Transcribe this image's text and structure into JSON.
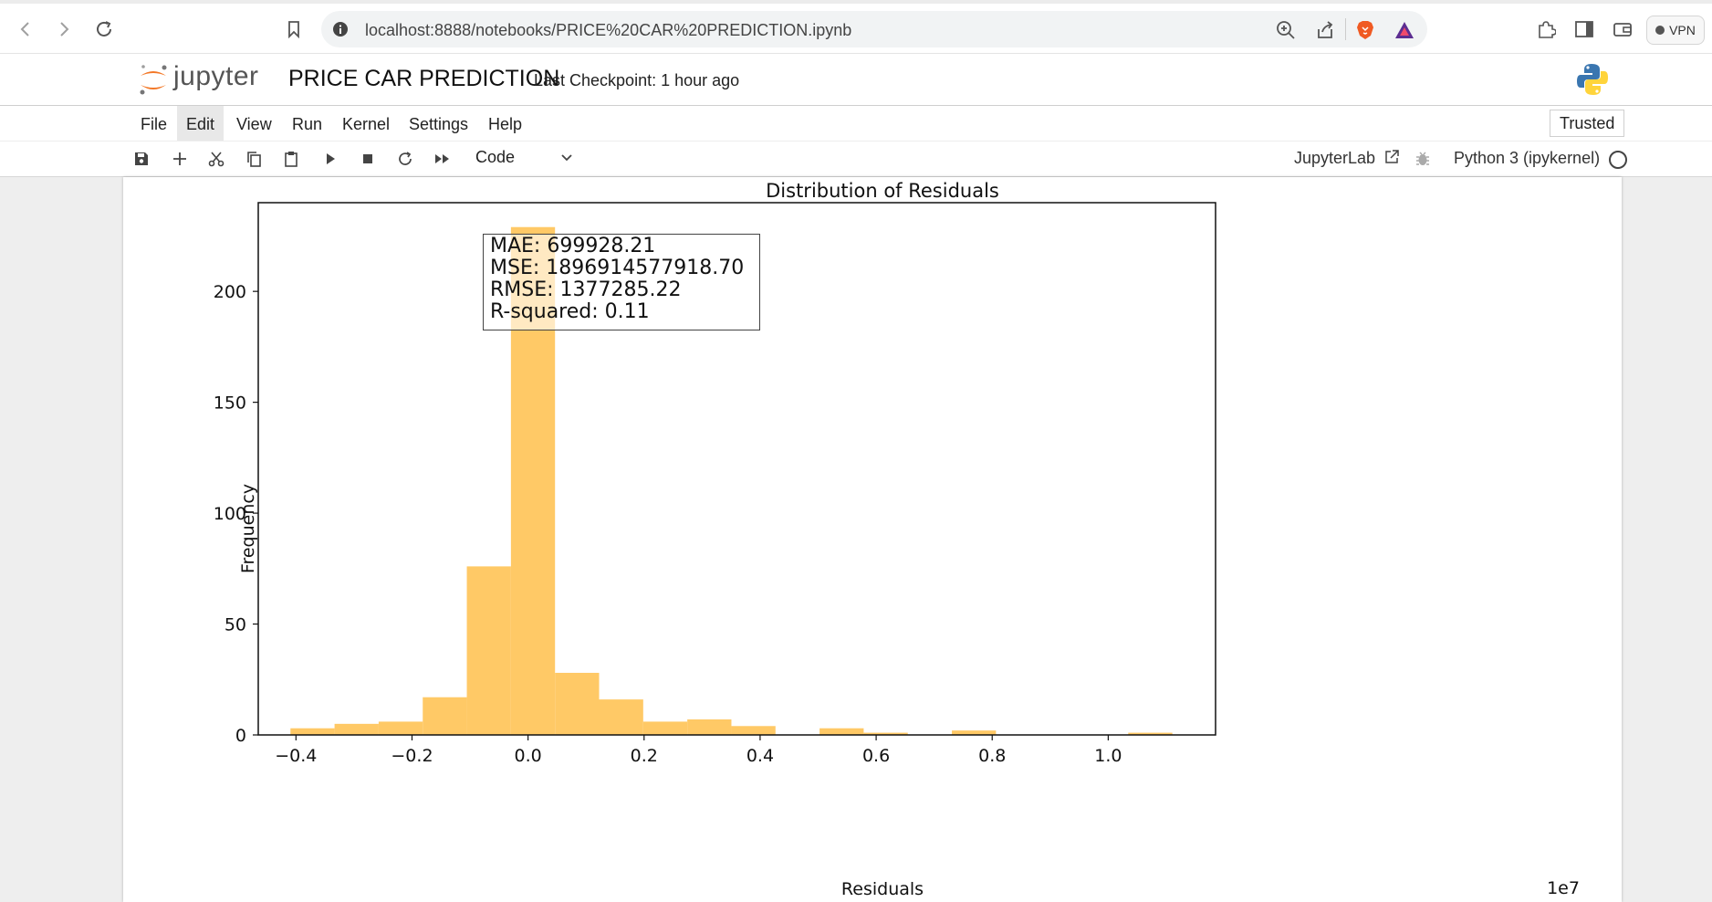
{
  "browser": {
    "url": "localhost:8888/notebooks/PRICE%20CAR%20PREDICTION.ipynb",
    "vpn_label": "VPN"
  },
  "header": {
    "brand": "jupyter",
    "notebook_title": "PRICE CAR PREDICTION",
    "checkpoint": "Last Checkpoint: 1 hour ago"
  },
  "menu": {
    "items": [
      "File",
      "Edit",
      "View",
      "Run",
      "Kernel",
      "Settings",
      "Help"
    ],
    "active": "Edit",
    "trusted_label": "Trusted"
  },
  "toolbar": {
    "cell_type": "Code",
    "jupyterlab_label": "JupyterLab",
    "kernel_label": "Python 3 (ipykernel)"
  },
  "colors": {
    "bar_fill": "#ffc966",
    "jupyter_orange": "#f37726"
  },
  "stats": {
    "mae": "MAE: 699928.21",
    "mse": "MSE: 1896914577918.70",
    "rmse": "RMSE: 1377285.22",
    "r2": "R-squared: 0.11"
  },
  "chart_data": {
    "type": "bar",
    "title": "Distribution of Residuals",
    "xlabel": "Residuals",
    "ylabel": "Frequency",
    "x_scale_label": "1e7",
    "bin_edges": [
      -0.4095,
      -0.3335,
      -0.2575,
      -0.1815,
      -0.1055,
      -0.0295,
      0.0465,
      0.1225,
      0.1985,
      0.2745,
      0.3505,
      0.4265,
      0.5025,
      0.5785,
      0.6545,
      0.7305,
      0.8065,
      0.8825,
      0.9585,
      1.0345,
      1.1105
    ],
    "values": [
      3,
      5,
      6,
      17,
      76,
      229,
      28,
      16,
      6,
      7,
      4,
      0,
      3,
      1,
      0,
      2,
      0,
      0,
      0,
      1
    ],
    "xlim": [
      -0.465,
      1.185
    ],
    "ylim": [
      0,
      240
    ],
    "x_ticks": [
      -0.4,
      -0.2,
      0.0,
      0.2,
      0.4,
      0.6,
      0.8,
      1.0
    ],
    "x_tick_labels": [
      "−0.4",
      "−0.2",
      "0.0",
      "0.2",
      "0.4",
      "0.6",
      "0.8",
      "1.0"
    ],
    "y_ticks": [
      0,
      50,
      100,
      150,
      200
    ],
    "y_tick_labels": [
      "0",
      "50",
      "100",
      "150",
      "200"
    ],
    "grid": false,
    "legend": "none"
  }
}
